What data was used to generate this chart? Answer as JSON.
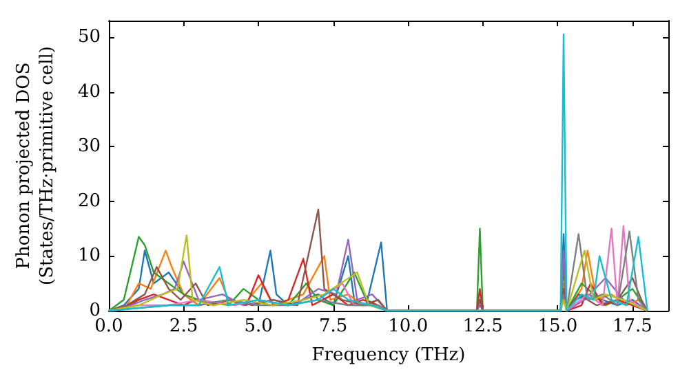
{
  "chart_data": {
    "type": "line",
    "xlabel": "Frequency (THz)",
    "ylabel": "Phonon projected DOS\n(States/THz·primitive cell)",
    "xlim": [
      0,
      18.7
    ],
    "xticks": [
      {
        "value": 0,
        "label": "0.0"
      },
      {
        "value": 2.5,
        "label": "2.5"
      },
      {
        "value": 5,
        "label": "5.0"
      },
      {
        "value": 7.5,
        "label": "7.5"
      },
      {
        "value": 10,
        "label": "10.0"
      },
      {
        "value": 12.5,
        "label": "12.5"
      },
      {
        "value": 15,
        "label": "15.0"
      },
      {
        "value": 17.5,
        "label": "17.5"
      }
    ],
    "ylim": [
      0,
      53
    ],
    "yticks": [
      0,
      10,
      20,
      30,
      40,
      50
    ],
    "grid": false,
    "marker": "none",
    "line_style": "solid",
    "series": [
      {
        "color": "#1f77b4",
        "x": [
          0,
          0.5,
          1.0,
          1.2,
          1.5,
          2.0,
          2.5,
          3.0,
          4.0,
          5.0,
          5.4,
          5.6,
          6.0,
          7.0,
          7.5,
          8.0,
          8.2,
          8.6,
          9.1,
          9.3,
          12.3,
          12.4,
          12.5,
          15.1,
          15.2,
          15.3,
          15.6,
          16.0,
          16.5,
          17.0,
          17.5,
          18.0
        ],
        "values": [
          0,
          1,
          4,
          11,
          5,
          7,
          3,
          1,
          2,
          1,
          11,
          3,
          1,
          3,
          1,
          10,
          2,
          1,
          12.5,
          0,
          0,
          2,
          0,
          0,
          14,
          0,
          2,
          3,
          2,
          1,
          2,
          0
        ]
      },
      {
        "color": "#ff7f0e",
        "x": [
          0,
          0.6,
          1.0,
          1.4,
          1.9,
          2.1,
          2.5,
          3.0,
          3.7,
          4.0,
          4.5,
          5.1,
          5.5,
          6.0,
          6.5,
          7.2,
          7.4,
          8.0,
          8.5,
          9.0,
          9.3,
          12.3,
          12.4,
          12.5,
          15.1,
          15.2,
          15.3,
          15.8,
          16.0,
          16.3,
          16.8,
          17.3,
          17.7,
          18.0
        ],
        "values": [
          0,
          1,
          5,
          4,
          11,
          8,
          3,
          1,
          6,
          2,
          1,
          5,
          1,
          2,
          3,
          10,
          2,
          3,
          1,
          2,
          0,
          0,
          2,
          0,
          0,
          5,
          0,
          4,
          11,
          2,
          3,
          1,
          2,
          0
        ]
      },
      {
        "color": "#2ca02c",
        "x": [
          0,
          0.5,
          1.0,
          1.2,
          1.5,
          2.0,
          2.5,
          3.0,
          4.0,
          4.5,
          5.0,
          6.0,
          6.6,
          7.0,
          7.5,
          8.2,
          8.6,
          9.0,
          9.3,
          12.3,
          12.4,
          12.5,
          15.1,
          15.2,
          15.3,
          15.8,
          16.2,
          16.6,
          17.0,
          17.5,
          18.0
        ],
        "values": [
          0,
          2,
          13.5,
          12,
          7,
          5,
          3,
          2,
          1,
          4,
          2,
          1,
          5,
          2,
          1,
          7,
          2,
          1,
          0,
          0,
          15,
          0,
          0,
          8,
          0,
          5,
          3,
          1,
          2,
          4,
          0
        ]
      },
      {
        "color": "#d62728",
        "x": [
          0,
          0.5,
          1.0,
          1.5,
          2.0,
          2.5,
          2.9,
          3.5,
          4.0,
          4.6,
          5.0,
          5.5,
          6.0,
          6.5,
          6.8,
          7.5,
          8.0,
          8.5,
          9.0,
          9.3,
          12.3,
          12.4,
          12.5,
          15.1,
          15.2,
          15.3,
          15.8,
          16.1,
          16.5,
          17.0,
          17.5,
          18.0
        ],
        "values": [
          0,
          0.5,
          2,
          3,
          2,
          1,
          2,
          1,
          2,
          1,
          6.5,
          1,
          2,
          9.5,
          1,
          3,
          1,
          2,
          1,
          0,
          0,
          4,
          0,
          0,
          3,
          0,
          1,
          5,
          1,
          2,
          1,
          0
        ]
      },
      {
        "color": "#9467bd",
        "x": [
          0,
          0.5,
          1.2,
          1.8,
          2.2,
          2.5,
          3.0,
          3.8,
          4.5,
          5.5,
          6.2,
          7.0,
          7.6,
          8.0,
          8.3,
          8.8,
          9.3,
          12.3,
          12.4,
          12.5,
          15.1,
          15.2,
          15.3,
          15.9,
          16.6,
          17.2,
          18.0
        ],
        "values": [
          0,
          0.5,
          2,
          3,
          4,
          9,
          2,
          3,
          1,
          2,
          1,
          4,
          3,
          13,
          2,
          3,
          0,
          0,
          1,
          0,
          0,
          11,
          0,
          2,
          6,
          2,
          0
        ]
      },
      {
        "color": "#8c564b",
        "x": [
          0,
          0.6,
          1.2,
          1.6,
          2.0,
          2.4,
          2.9,
          3.3,
          4.0,
          4.8,
          5.5,
          6.3,
          7.0,
          7.2,
          7.8,
          8.5,
          9.0,
          9.3,
          12.3,
          12.4,
          12.5,
          15.1,
          15.2,
          15.3,
          15.7,
          16.3,
          17.0,
          17.5,
          17.8,
          18.0
        ],
        "values": [
          0,
          1,
          3,
          8,
          4,
          2,
          5,
          1,
          2,
          1,
          2,
          1,
          18.5,
          4,
          2,
          1,
          2,
          0,
          0,
          2,
          0,
          0,
          4,
          0,
          3,
          1,
          2,
          6,
          2,
          0
        ]
      },
      {
        "color": "#e377c2",
        "x": [
          0,
          1.0,
          2.0,
          3.0,
          4.2,
          5.0,
          6.0,
          7.0,
          7.8,
          8.2,
          9.0,
          9.3,
          15.1,
          15.2,
          15.3,
          16.0,
          16.5,
          16.8,
          17.0,
          17.2,
          17.4,
          18.0
        ],
        "values": [
          0,
          1,
          1,
          2,
          1,
          2,
          1,
          2,
          5,
          1,
          1,
          0,
          0,
          2,
          0,
          3,
          1,
          15,
          1,
          15.5,
          2,
          0
        ]
      },
      {
        "color": "#7f7f7f",
        "x": [
          0,
          1.0,
          2.0,
          3.0,
          4.0,
          5.0,
          6.0,
          7.0,
          8.0,
          9.0,
          9.3,
          15.1,
          15.2,
          15.3,
          15.7,
          16.0,
          16.5,
          17.0,
          17.4,
          17.7,
          18.0
        ],
        "values": [
          0,
          0.5,
          1,
          1,
          2,
          1,
          1,
          2,
          1,
          1,
          0,
          0,
          3,
          0,
          14,
          2,
          3,
          1,
          14.5,
          2,
          0
        ]
      },
      {
        "color": "#bcbd22",
        "x": [
          0,
          1.0,
          1.8,
          2.3,
          2.6,
          2.8,
          3.5,
          4.5,
          5.5,
          6.5,
          7.2,
          8.3,
          8.7,
          9.3,
          15.1,
          15.2,
          15.3,
          15.9,
          16.2,
          16.6,
          17.2,
          18.0
        ],
        "values": [
          0,
          1,
          3,
          4,
          13.8,
          2,
          1,
          2,
          1,
          2,
          3,
          7,
          1,
          0,
          0,
          2,
          0,
          11,
          2,
          3,
          2,
          0
        ]
      },
      {
        "color": "#17becf",
        "x": [
          0,
          1.0,
          2.0,
          3.0,
          3.7,
          4.0,
          5.0,
          6.0,
          7.0,
          7.5,
          8.0,
          8.8,
          9.3,
          15.1,
          15.2,
          15.3,
          15.8,
          16.2,
          16.4,
          16.8,
          17.3,
          17.7,
          18.0
        ],
        "values": [
          0,
          0.5,
          1,
          1,
          8,
          1,
          2,
          1,
          2,
          4,
          2,
          1,
          0,
          0,
          50.5,
          0,
          3,
          2,
          10,
          2,
          1,
          13.5,
          0
        ]
      }
    ]
  }
}
